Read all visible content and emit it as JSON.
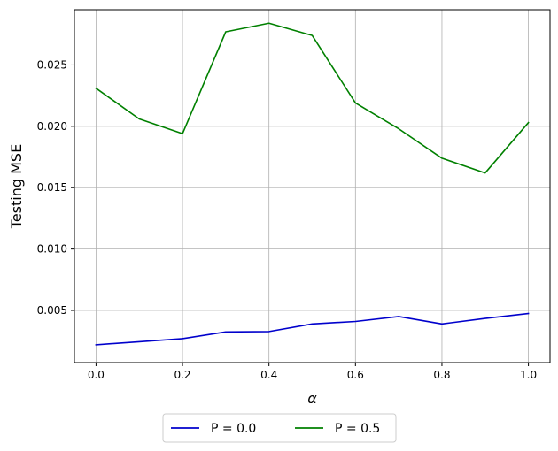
{
  "chart_data": {
    "type": "line",
    "title": "",
    "xlabel": "α",
    "ylabel": "Testing MSE",
    "x": [
      0.0,
      0.1,
      0.2,
      0.3,
      0.4,
      0.5,
      0.6,
      0.7,
      0.8,
      0.9,
      1.0
    ],
    "xlim": [
      -0.05,
      1.05
    ],
    "ylim": [
      0.00075,
      0.0295
    ],
    "xticks": [
      0.0,
      0.2,
      0.4,
      0.6,
      0.8,
      1.0
    ],
    "xtick_labels": [
      "0.0",
      "0.2",
      "0.4",
      "0.6",
      "0.8",
      "1.0"
    ],
    "yticks": [
      0.005,
      0.01,
      0.015,
      0.02,
      0.025
    ],
    "ytick_labels": [
      "0.005",
      "0.010",
      "0.015",
      "0.020",
      "0.025"
    ],
    "grid": true,
    "legend_position": "below",
    "series": [
      {
        "name": "P = 0.0",
        "color": "#0000cc",
        "values": [
          0.0022,
          0.00245,
          0.0027,
          0.00325,
          0.00328,
          0.0039,
          0.0041,
          0.0045,
          0.0039,
          0.00435,
          0.00475
        ]
      },
      {
        "name": "P = 0.5",
        "color": "#008000",
        "values": [
          0.0231,
          0.0206,
          0.0194,
          0.0277,
          0.0284,
          0.0274,
          0.0219,
          0.0198,
          0.0174,
          0.0162,
          0.0203
        ]
      }
    ]
  }
}
